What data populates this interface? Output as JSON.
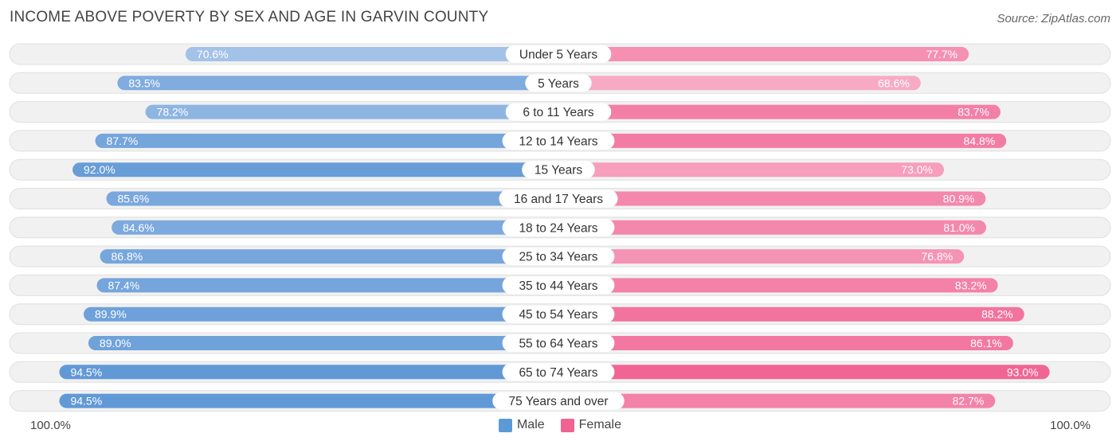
{
  "title": "INCOME ABOVE POVERTY BY SEX AND AGE IN GARVIN COUNTY",
  "source": "Source: ZipAtlas.com",
  "axis": {
    "left_label": "100.0%",
    "right_label": "100.0%"
  },
  "legend": [
    {
      "label": "Male",
      "color": "#5b9bd5"
    },
    {
      "label": "Female",
      "color": "#f06292"
    }
  ],
  "chart_data": {
    "type": "bar",
    "orientation": "horizontal-diverging",
    "title": "INCOME ABOVE POVERTY BY SEX AND AGE IN GARVIN COUNTY",
    "xlim": [
      0,
      100
    ],
    "categories": [
      "Under 5 Years",
      "5 Years",
      "6 to 11 Years",
      "12 to 14 Years",
      "15 Years",
      "16 and 17 Years",
      "18 to 24 Years",
      "25 to 34 Years",
      "35 to 44 Years",
      "45 to 54 Years",
      "55 to 64 Years",
      "65 to 74 Years",
      "75 Years and over"
    ],
    "series": [
      {
        "name": "Male",
        "values": [
          70.6,
          83.5,
          78.2,
          87.7,
          92.0,
          85.6,
          84.6,
          86.8,
          87.4,
          89.9,
          89.0,
          94.5,
          94.5
        ],
        "labels": [
          "70.6%",
          "83.5%",
          "78.2%",
          "87.7%",
          "92.0%",
          "85.6%",
          "84.6%",
          "86.8%",
          "87.4%",
          "89.9%",
          "89.0%",
          "94.5%",
          "94.5%"
        ]
      },
      {
        "name": "Female",
        "values": [
          77.7,
          68.6,
          83.7,
          84.8,
          73.0,
          80.9,
          81.0,
          76.8,
          83.2,
          88.2,
          86.1,
          93.0,
          82.7
        ],
        "labels": [
          "77.7%",
          "68.6%",
          "83.7%",
          "84.8%",
          "73.0%",
          "80.9%",
          "81.0%",
          "76.8%",
          "83.2%",
          "88.2%",
          "86.1%",
          "93.0%",
          "82.7%"
        ]
      }
    ]
  }
}
